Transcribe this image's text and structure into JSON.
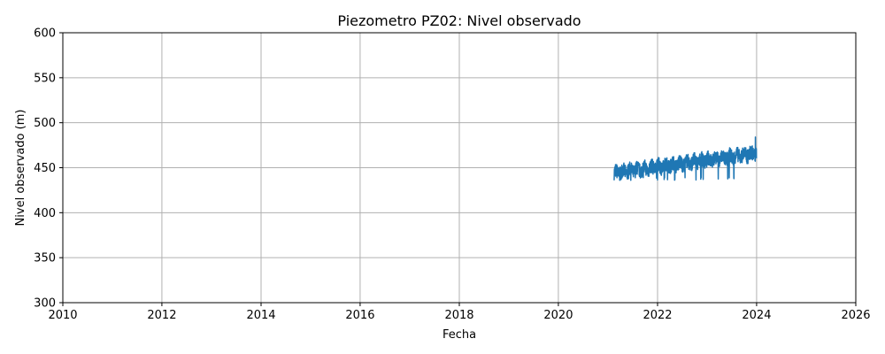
{
  "chart_data": {
    "type": "line",
    "title": "Piezometro PZ02: Nivel observado",
    "xlabel": "Fecha",
    "ylabel": "Nivel observado (m)",
    "xlim": [
      "2010-01-01",
      "2026-01-01"
    ],
    "ylim": [
      300,
      600
    ],
    "x_ticks": [
      "2010",
      "2012",
      "2014",
      "2016",
      "2018",
      "2020",
      "2022",
      "2024",
      "2026"
    ],
    "y_ticks": [
      300,
      350,
      400,
      450,
      500,
      550,
      600
    ],
    "grid": true,
    "series": [
      {
        "color": "#1f77b4",
        "x_start": "2021-02-15",
        "x_end": "2023-12-31",
        "trend_start": 444,
        "trend_end": 466,
        "band_halfwidth": 8,
        "min": 436,
        "max": 484
      }
    ]
  }
}
